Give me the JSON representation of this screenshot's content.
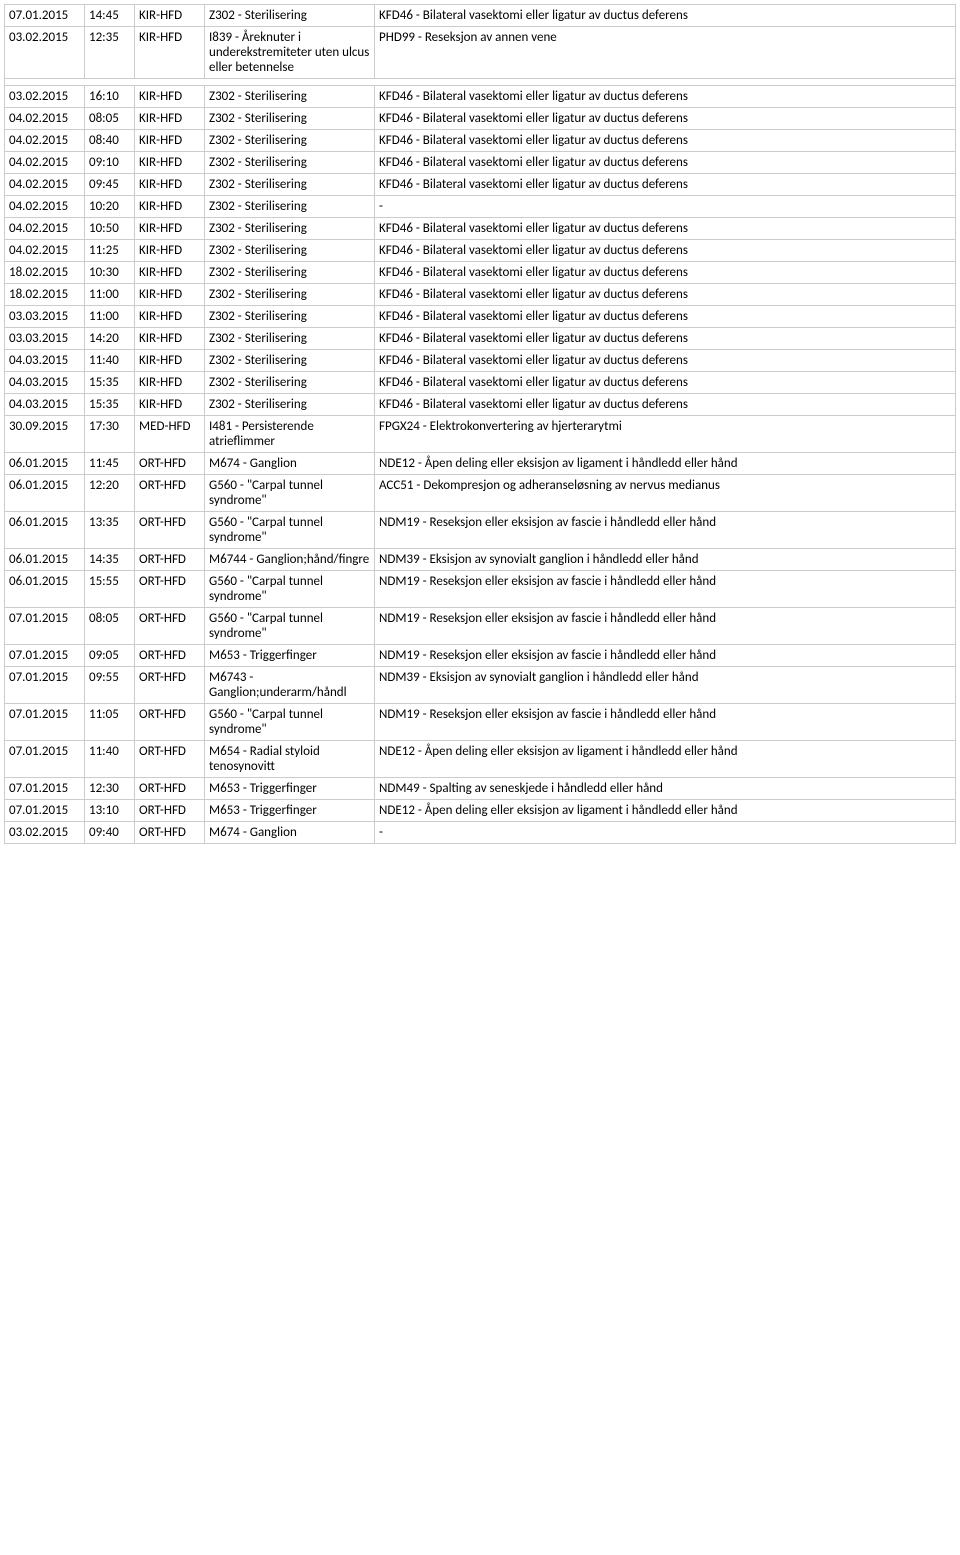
{
  "table": {
    "columns": [
      {
        "key": "date"
      },
      {
        "key": "time"
      },
      {
        "key": "dept"
      },
      {
        "key": "code"
      },
      {
        "key": "desc"
      }
    ],
    "rows": [
      [
        "07.01.2015",
        "14:45",
        "KIR-HFD",
        "Z302 - Sterilisering",
        "KFD46 - Bilateral vasektomi eller ligatur av ductus deferens"
      ],
      [
        "03.02.2015",
        "12:35",
        "KIR-HFD",
        "I839 - Åreknuter i underekstremiteter uten ulcus eller betennelse",
        "PHD99 - Reseksjon av annen vene"
      ],
      [
        "03.02.2015",
        "16:10",
        "KIR-HFD",
        "Z302 - Sterilisering",
        "KFD46 - Bilateral vasektomi eller ligatur av ductus deferens"
      ],
      [
        "04.02.2015",
        "08:05",
        "KIR-HFD",
        "Z302 - Sterilisering",
        "KFD46 - Bilateral vasektomi eller ligatur av ductus deferens"
      ],
      [
        "04.02.2015",
        "08:40",
        "KIR-HFD",
        "Z302 - Sterilisering",
        "KFD46 - Bilateral vasektomi eller ligatur av ductus deferens"
      ],
      [
        "04.02.2015",
        "09:10",
        "KIR-HFD",
        "Z302 - Sterilisering",
        "KFD46 - Bilateral vasektomi eller ligatur av ductus deferens"
      ],
      [
        "04.02.2015",
        "09:45",
        "KIR-HFD",
        "Z302 - Sterilisering",
        "KFD46 - Bilateral vasektomi eller ligatur av ductus deferens"
      ],
      [
        "04.02.2015",
        "10:20",
        "KIR-HFD",
        "Z302 - Sterilisering",
        " -"
      ],
      [
        "04.02.2015",
        "10:50",
        "KIR-HFD",
        "Z302 - Sterilisering",
        "KFD46 - Bilateral vasektomi eller ligatur av ductus deferens"
      ],
      [
        "04.02.2015",
        "11:25",
        "KIR-HFD",
        "Z302 - Sterilisering",
        "KFD46 - Bilateral vasektomi eller ligatur av ductus deferens"
      ],
      [
        "18.02.2015",
        "10:30",
        "KIR-HFD",
        "Z302 - Sterilisering",
        "KFD46 - Bilateral vasektomi eller ligatur av ductus deferens"
      ],
      [
        "18.02.2015",
        "11:00",
        "KIR-HFD",
        "Z302 - Sterilisering",
        "KFD46 - Bilateral vasektomi eller ligatur av ductus deferens"
      ],
      [
        "03.03.2015",
        "11:00",
        "KIR-HFD",
        "Z302 - Sterilisering",
        "KFD46 - Bilateral vasektomi eller ligatur av ductus deferens"
      ],
      [
        "03.03.2015",
        "14:20",
        "KIR-HFD",
        "Z302 - Sterilisering",
        "KFD46 - Bilateral vasektomi eller ligatur av ductus deferens"
      ],
      [
        "04.03.2015",
        "11:40",
        "KIR-HFD",
        "Z302 - Sterilisering",
        "KFD46 - Bilateral vasektomi eller ligatur av ductus deferens"
      ],
      [
        "04.03.2015",
        "15:35",
        "KIR-HFD",
        "Z302 - Sterilisering",
        "KFD46 - Bilateral vasektomi eller ligatur av ductus deferens"
      ],
      [
        "04.03.2015",
        "15:35",
        "KIR-HFD",
        "Z302 - Sterilisering",
        "KFD46 - Bilateral vasektomi eller ligatur av ductus deferens"
      ],
      [
        "30.09.2015",
        "17:30",
        "MED-HFD",
        "I481 - Persisterende atrieflimmer",
        "FPGX24 - Elektrokonvertering av hjerterarytmi"
      ],
      [
        "06.01.2015",
        "11:45",
        "ORT-HFD",
        "M674 - Ganglion",
        "NDE12 - Åpen deling eller eksisjon av ligament i håndledd eller hånd"
      ],
      [
        "06.01.2015",
        "12:20",
        "ORT-HFD",
        "G560 - \"Carpal tunnel syndrome\"",
        "ACC51 - Dekompresjon og adheranseløsning av nervus medianus"
      ],
      [
        "06.01.2015",
        "13:35",
        "ORT-HFD",
        "G560 - \"Carpal tunnel syndrome\"",
        "NDM19 - Reseksjon eller eksisjon av fascie i håndledd eller hånd"
      ],
      [
        "06.01.2015",
        "14:35",
        "ORT-HFD",
        "M6744 - Ganglion;hånd/fingre",
        "NDM39 - Eksisjon av synovialt ganglion i håndledd eller hånd"
      ],
      [
        "06.01.2015",
        "15:55",
        "ORT-HFD",
        "G560 - \"Carpal tunnel syndrome\"",
        "NDM19 - Reseksjon eller eksisjon av fascie i håndledd eller hånd"
      ],
      [
        "07.01.2015",
        "08:05",
        "ORT-HFD",
        "G560 - \"Carpal tunnel syndrome\"",
        "NDM19 - Reseksjon eller eksisjon av fascie i håndledd eller hånd"
      ],
      [
        "07.01.2015",
        "09:05",
        "ORT-HFD",
        "M653 - Triggerfinger",
        "NDM19 - Reseksjon eller eksisjon av fascie i håndledd eller hånd"
      ],
      [
        "07.01.2015",
        "09:55",
        "ORT-HFD",
        "M6743 - Ganglion;underarm/håndl",
        "NDM39 - Eksisjon av synovialt ganglion i håndledd eller hånd"
      ],
      [
        "07.01.2015",
        "11:05",
        "ORT-HFD",
        "G560 - \"Carpal tunnel syndrome\"",
        "NDM19 - Reseksjon eller eksisjon av fascie i håndledd eller hånd"
      ],
      [
        "07.01.2015",
        "11:40",
        "ORT-HFD",
        "M654 - Radial styloid tenosynovitt",
        "NDE12 - Åpen deling eller eksisjon av ligament i håndledd eller hånd"
      ],
      [
        "07.01.2015",
        "12:30",
        "ORT-HFD",
        "M653 - Triggerfinger",
        "NDM49 - Spalting av seneskjede i håndledd eller hånd"
      ],
      [
        "07.01.2015",
        "13:10",
        "ORT-HFD",
        "M653 - Triggerfinger",
        "NDE12 - Åpen deling eller eksisjon av ligament i håndledd eller hånd"
      ],
      [
        "03.02.2015",
        "09:40",
        "ORT-HFD",
        "M674 - Ganglion",
        " -"
      ]
    ],
    "special_spacer_after": 1,
    "colors": {
      "border": "#cccccc",
      "text": "#000000",
      "bg": "#ffffff"
    }
  }
}
